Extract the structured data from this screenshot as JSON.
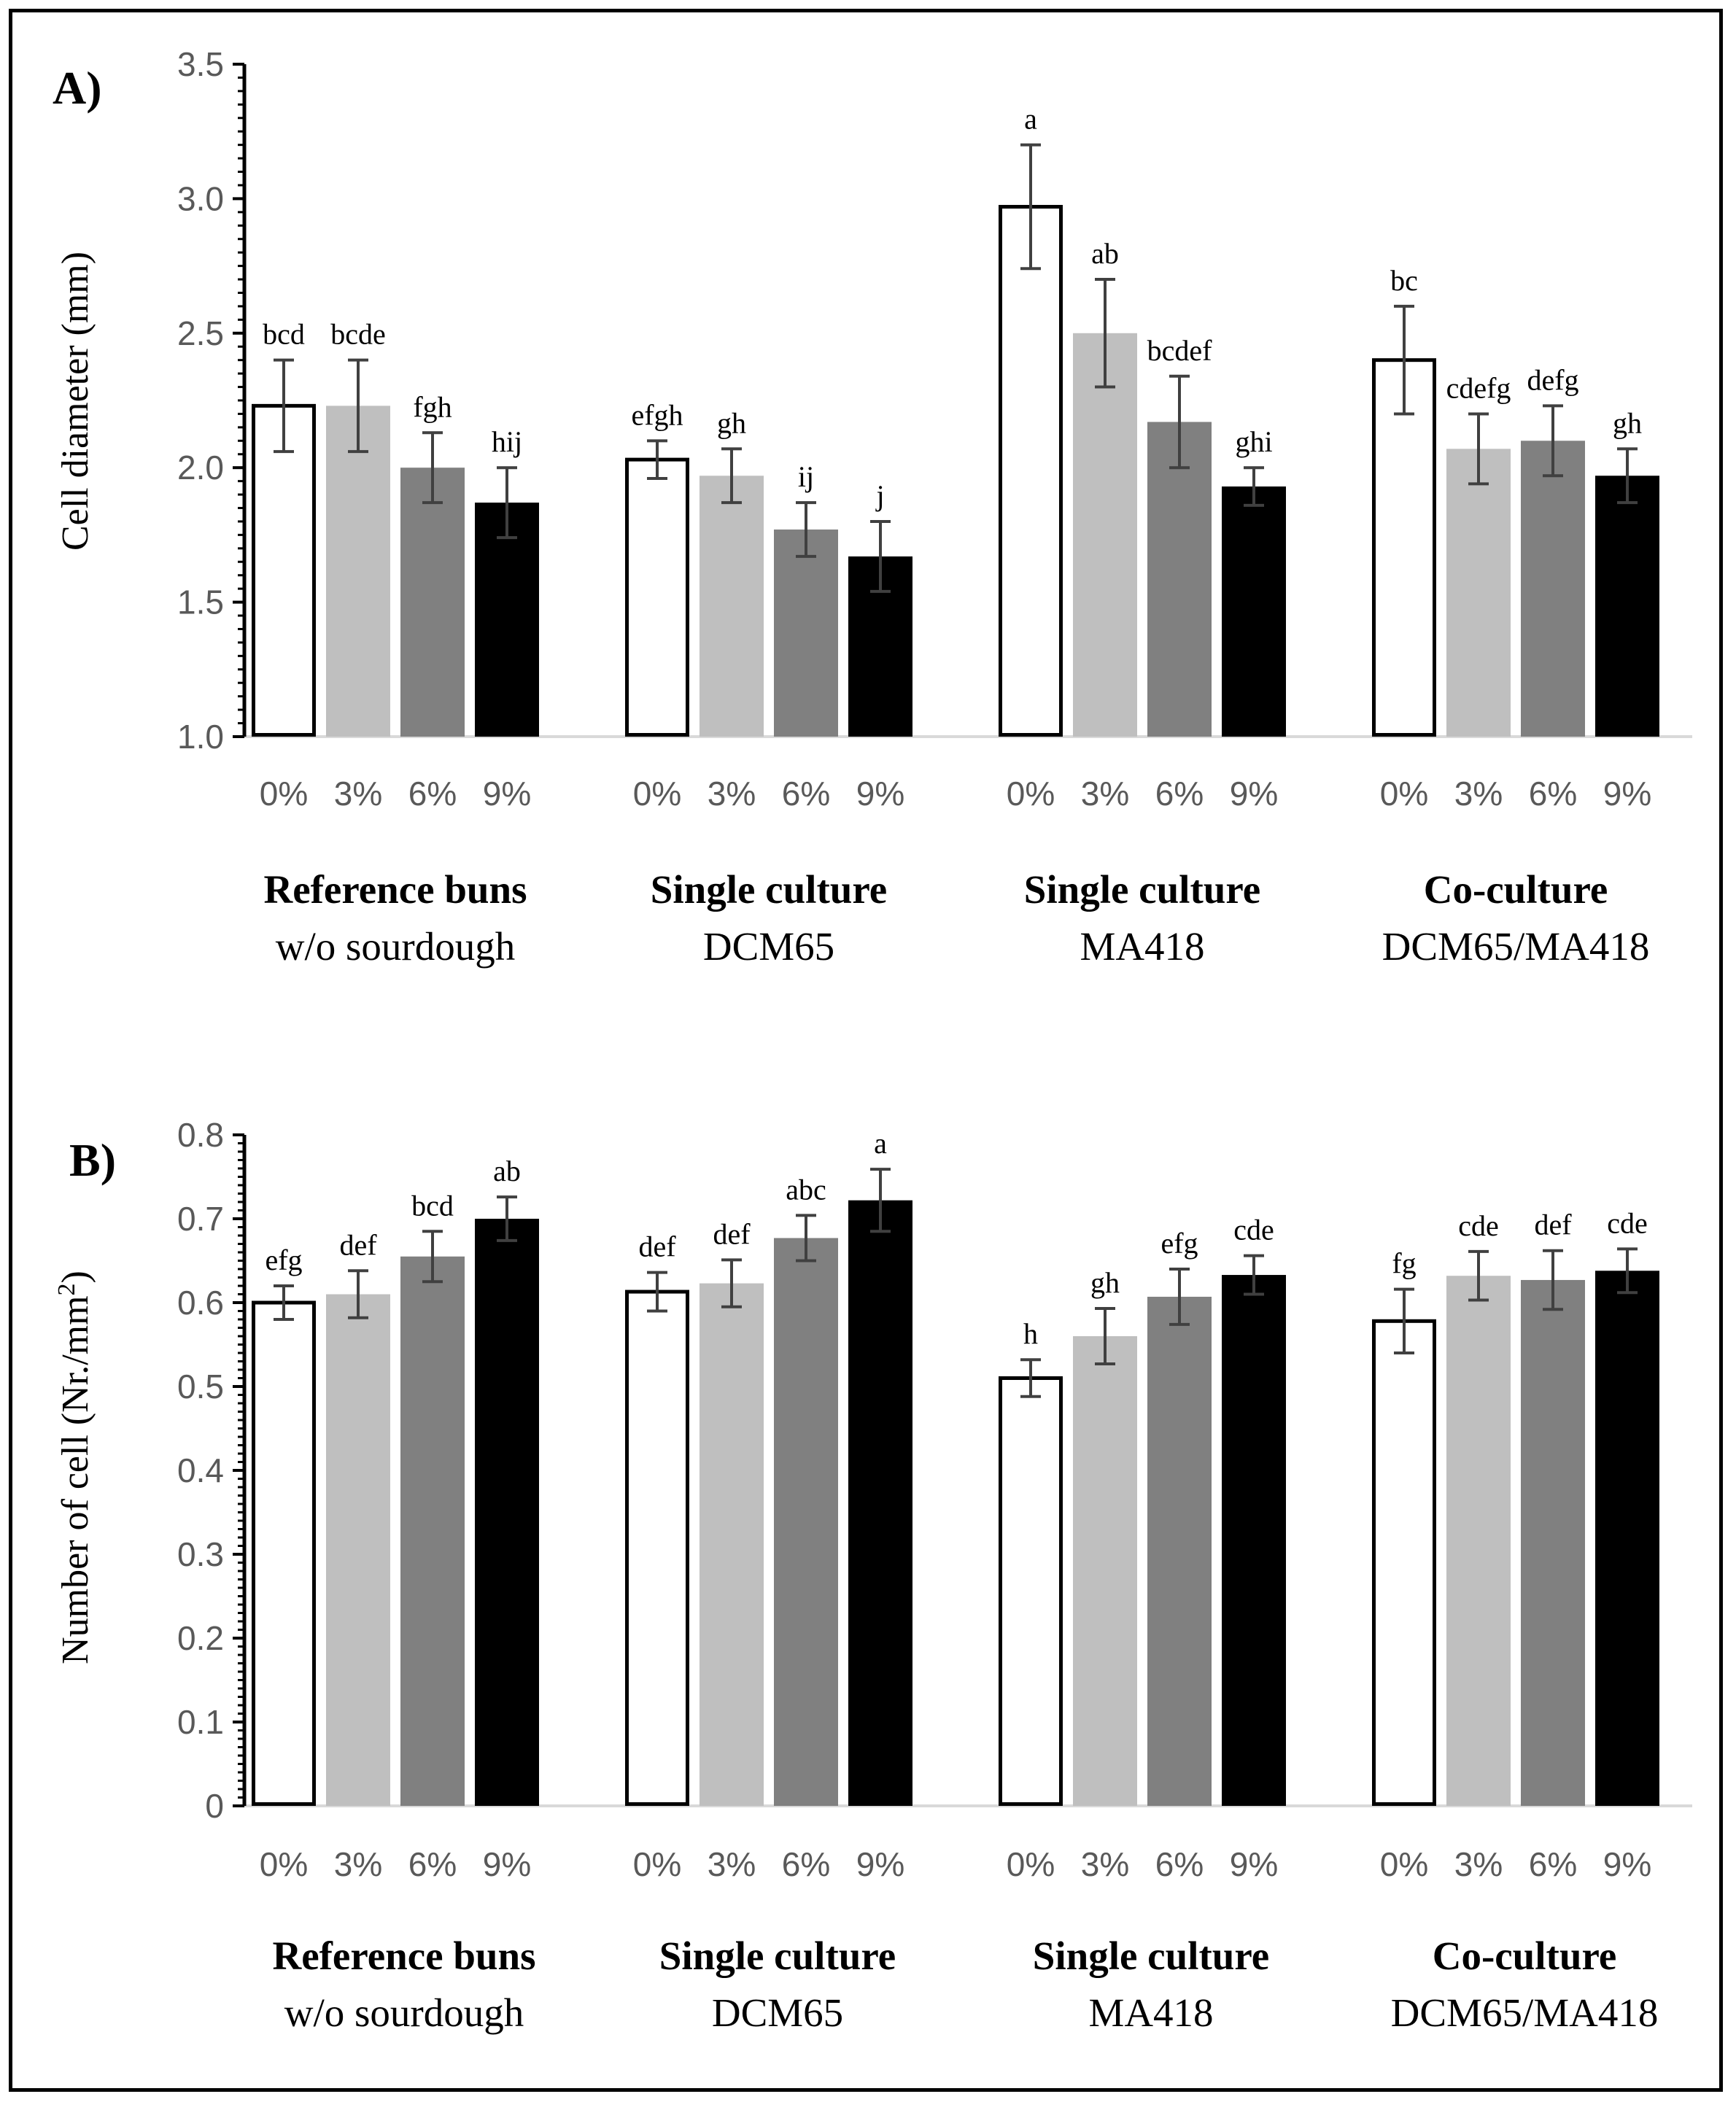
{
  "colors": {
    "c0": "#ffffff",
    "c3": "#bfbfbf",
    "c6": "#808080",
    "c9": "#000000",
    "err": "#404040",
    "axis": "#000000",
    "baseline": "#d9d9d9"
  },
  "chart_data": [
    {
      "type": "bar",
      "panel_label": "A)",
      "ylabel": "Cell diameter (mm)",
      "ylim": [
        1.0,
        3.5
      ],
      "yticks": [
        "1.0",
        "1.5",
        "2.0",
        "2.5",
        "3.0",
        "3.5"
      ],
      "ytick_values": [
        1.0,
        1.5,
        2.0,
        2.5,
        3.0,
        3.5
      ],
      "concentrations": [
        "0%",
        "3%",
        "6%",
        "9%"
      ],
      "groups": [
        {
          "name_bold": "Reference buns",
          "name_sub": "w/o sourdough",
          "values": [
            2.23,
            2.23,
            2.0,
            1.87
          ],
          "errors": [
            0.17,
            0.17,
            0.13,
            0.13
          ],
          "letters": [
            "bcd",
            "bcde",
            "fgh",
            "hij"
          ]
        },
        {
          "name_bold": "Single culture",
          "name_sub": "DCM65",
          "values": [
            2.03,
            1.97,
            1.77,
            1.67
          ],
          "errors": [
            0.07,
            0.1,
            0.1,
            0.13
          ],
          "letters": [
            "efgh",
            "gh",
            "ij",
            "j"
          ]
        },
        {
          "name_bold": "Single culture",
          "name_sub": "MA418",
          "values": [
            2.97,
            2.5,
            2.17,
            1.93
          ],
          "errors": [
            0.23,
            0.2,
            0.17,
            0.07
          ],
          "letters": [
            "a",
            "ab",
            "bcdef",
            "ghi"
          ]
        },
        {
          "name_bold": "Co-culture",
          "name_sub": "DCM65/MA418",
          "values": [
            2.4,
            2.07,
            2.1,
            1.97
          ],
          "errors": [
            0.2,
            0.13,
            0.13,
            0.1
          ],
          "letters": [
            "bc",
            "cdefg",
            "defg",
            "gh"
          ]
        }
      ]
    },
    {
      "type": "bar",
      "panel_label": "B)",
      "ylabel": "Number of cell (Nr./mm",
      "ylabel_sup": "2",
      "ylabel_end": ")",
      "ylim": [
        0,
        0.8
      ],
      "yticks": [
        "0",
        "0.1",
        "0.2",
        "0.3",
        "0.4",
        "0.5",
        "0.6",
        "0.7",
        "0.8"
      ],
      "ytick_values": [
        0,
        0.1,
        0.2,
        0.3,
        0.4,
        0.5,
        0.6,
        0.7,
        0.8
      ],
      "concentrations": [
        "0%",
        "3%",
        "6%",
        "9%"
      ],
      "groups": [
        {
          "name_bold": "Reference buns",
          "name_sub": "w/o sourdough",
          "values": [
            0.6,
            0.61,
            0.655,
            0.7
          ],
          "errors": [
            0.02,
            0.028,
            0.03,
            0.026
          ],
          "letters": [
            "efg",
            "def",
            "bcd",
            "ab"
          ]
        },
        {
          "name_bold": "Single culture",
          "name_sub": "DCM65",
          "values": [
            0.613,
            0.623,
            0.677,
            0.722
          ],
          "errors": [
            0.023,
            0.028,
            0.027,
            0.037
          ],
          "letters": [
            "def",
            "def",
            "abc",
            "a"
          ]
        },
        {
          "name_bold": "Single culture",
          "name_sub": "MA418",
          "values": [
            0.51,
            0.56,
            0.607,
            0.633
          ],
          "errors": [
            0.022,
            0.033,
            0.033,
            0.023
          ],
          "letters": [
            "h",
            "gh",
            "efg",
            "cde"
          ]
        },
        {
          "name_bold": "Co-culture",
          "name_sub": "DCM65/MA418",
          "values": [
            0.578,
            0.632,
            0.627,
            0.638
          ],
          "errors": [
            0.038,
            0.029,
            0.035,
            0.026
          ],
          "letters": [
            "fg",
            "cde",
            "def",
            "cde"
          ]
        }
      ]
    }
  ]
}
